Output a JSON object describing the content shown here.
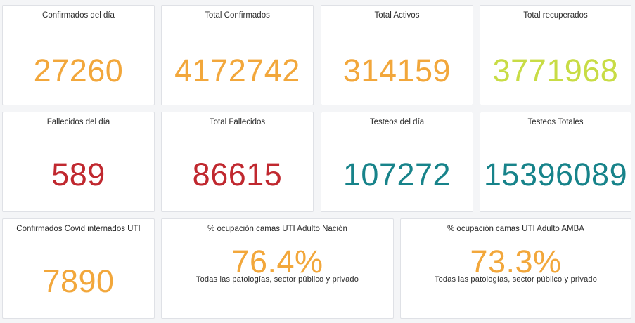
{
  "colors": {
    "orange": "#f2a73b",
    "lime": "#c8dc45",
    "red": "#c0282f",
    "teal": "#17838a"
  },
  "panels": [
    {
      "title": "Confirmados del día",
      "value": "27260",
      "color": "orange"
    },
    {
      "title": "Total Confirmados",
      "value": "4172742",
      "color": "orange"
    },
    {
      "title": "Total Activos",
      "value": "314159",
      "color": "orange"
    },
    {
      "title": "Total recuperados",
      "value": "3771968",
      "color": "lime"
    },
    {
      "title": "Fallecidos del día",
      "value": "589",
      "color": "red"
    },
    {
      "title": "Total Fallecidos",
      "value": "86615",
      "color": "red"
    },
    {
      "title": "Testeos del día",
      "value": "107272",
      "color": "teal"
    },
    {
      "title": "Testeos Totales",
      "value": "15396089",
      "color": "teal"
    },
    {
      "title": "Confirmados Covid internados UTI",
      "value": "7890",
      "color": "orange"
    },
    {
      "title": "% ocupación camas UTI Adulto Nación",
      "value": "76.4%",
      "subtitle": "Todas las patologías, sector público y privado",
      "color": "orange"
    },
    {
      "title": "% ocupación camas UTI Adulto AMBA",
      "value": "73.3%",
      "subtitle": "Todas las patologías, sector público y privado",
      "color": "orange"
    }
  ]
}
